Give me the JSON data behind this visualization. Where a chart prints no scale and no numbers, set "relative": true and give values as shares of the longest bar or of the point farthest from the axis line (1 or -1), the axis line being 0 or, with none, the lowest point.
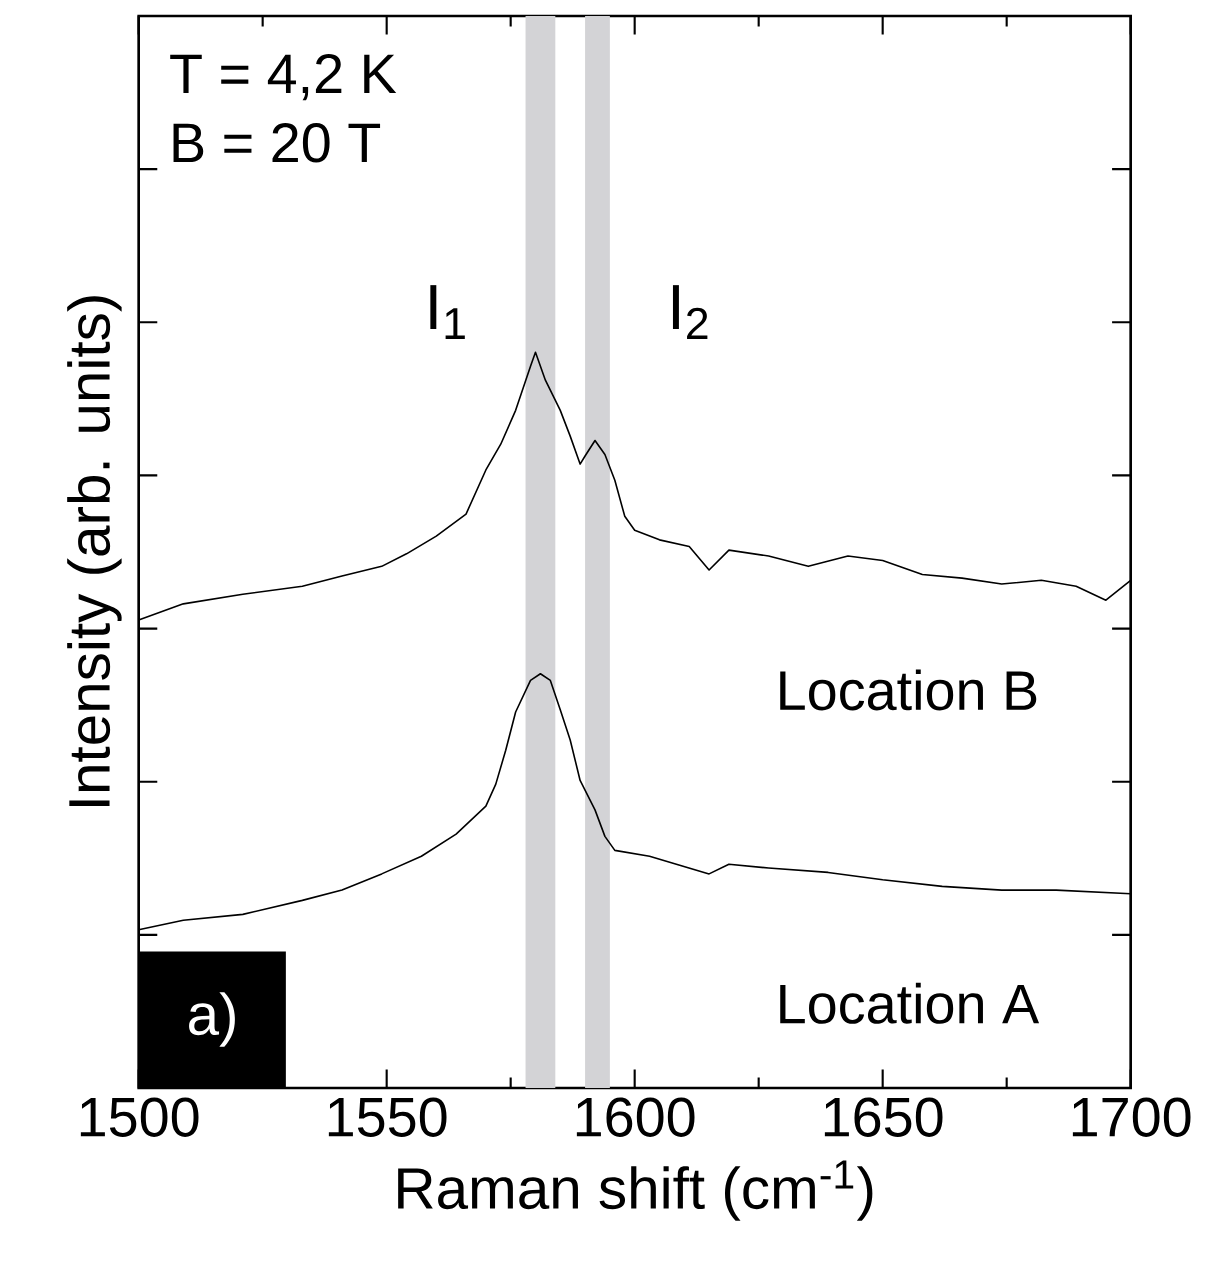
{
  "chart_data": {
    "type": "line",
    "relative": true,
    "xlabel": "Raman shift (cm$^{-1}$)",
    "ylabel": "Intensity (arb. units)",
    "xlim": [
      1500,
      1700
    ],
    "xticks": [
      1500,
      1550,
      1600,
      1650,
      1700
    ],
    "tick_labels": "x",
    "marker": "none",
    "line_style": "solid",
    "series": [
      {
        "name": "Location A",
        "color": "#000000",
        "x": [
          1500,
          1509,
          1521,
          1533,
          1541,
          1549,
          1557,
          1564,
          1570,
          1572,
          1574,
          1576,
          1579,
          1581,
          1583,
          1585,
          1587,
          1589,
          1592,
          1594,
          1596,
          1603,
          1615,
          1619,
          1627,
          1639,
          1650,
          1662,
          1674,
          1685,
          1700
        ],
        "values": [
          0.215,
          0.228,
          0.236,
          0.255,
          0.269,
          0.291,
          0.315,
          0.345,
          0.383,
          0.413,
          0.459,
          0.511,
          0.554,
          0.563,
          0.554,
          0.514,
          0.473,
          0.418,
          0.378,
          0.342,
          0.323,
          0.315,
          0.291,
          0.304,
          0.299,
          0.293,
          0.283,
          0.274,
          0.269,
          0.269,
          0.264
        ]
      },
      {
        "name": "Location B",
        "color": "#000000",
        "x": [
          1500,
          1509,
          1521,
          1533,
          1541,
          1549,
          1554,
          1560,
          1566,
          1570,
          1573,
          1576,
          1579,
          1580,
          1582,
          1585,
          1587,
          1589,
          1590,
          1592,
          1594,
          1596,
          1598,
          1600,
          1605,
          1611,
          1615,
          1619,
          1627,
          1635,
          1643,
          1650,
          1658,
          1666,
          1674,
          1682,
          1689,
          1695,
          1700
        ],
        "values": [
          0.636,
          0.658,
          0.671,
          0.682,
          0.696,
          0.709,
          0.726,
          0.75,
          0.78,
          0.84,
          0.875,
          0.921,
          0.981,
          1,
          0.962,
          0.921,
          0.886,
          0.848,
          0.859,
          0.88,
          0.861,
          0.826,
          0.777,
          0.758,
          0.745,
          0.736,
          0.704,
          0.731,
          0.723,
          0.709,
          0.723,
          0.717,
          0.698,
          0.693,
          0.685,
          0.69,
          0.682,
          0.663,
          0.69
        ]
      }
    ],
    "bands": [
      {
        "axis": "x",
        "from": 1578,
        "to": 1584,
        "label": "I$_{1}$",
        "color": "#d3d3d6"
      },
      {
        "axis": "x",
        "from": 1590,
        "to": 1595,
        "label": "I$_{2}$",
        "color": "#d3d3d6"
      }
    ],
    "annotations": [
      "T = 4,2 K",
      "B = 20 T",
      "a)"
    ]
  }
}
